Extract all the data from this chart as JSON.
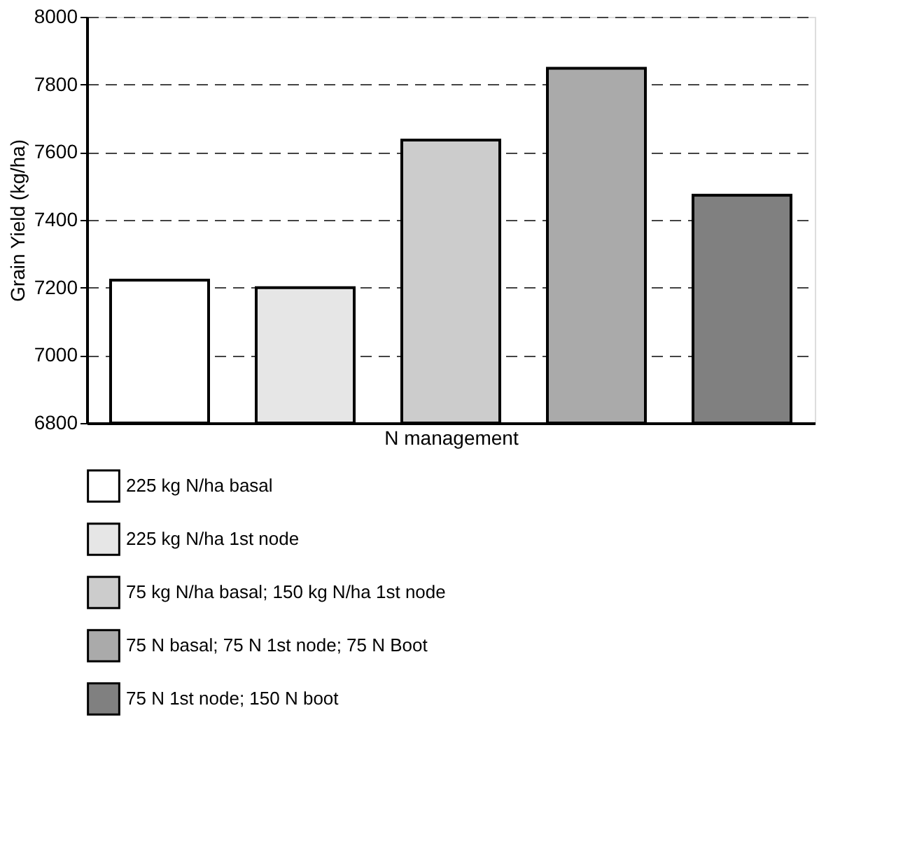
{
  "chart_data": {
    "type": "bar",
    "xlabel": "N management",
    "ylabel": "Grain Yield (kg/ha)",
    "categories": [
      null,
      null,
      null,
      null,
      null
    ],
    "series": [
      {
        "name": "225 kg N/ha basal",
        "color": "#ffffff",
        "values": [
          7222,
          null,
          null,
          null,
          null
        ]
      },
      {
        "name": "225 kg N/ha 1st node",
        "color": "#e6e6e6",
        "values": [
          null,
          7200,
          null,
          null,
          null
        ]
      },
      {
        "name": "75 kg N/ha basal; 150 kg N/ha 1st node",
        "color": "#cccccc",
        "values": [
          null,
          null,
          7636,
          null,
          null
        ]
      },
      {
        "name": "75 N basal; 75 N 1st node; 75 N Boot",
        "color": "#aaaaaa",
        "values": [
          null,
          null,
          null,
          7848,
          null
        ]
      },
      {
        "name": "75 N 1st node; 150 N boot",
        "color": "#808080",
        "values": [
          null,
          null,
          null,
          null,
          7473
        ]
      }
    ],
    "ylim": [
      6800,
      8000
    ],
    "yticks": [
      6800,
      7000,
      7200,
      7400,
      7600,
      7800,
      8000
    ],
    "grid": "y",
    "legend": "bottom"
  }
}
